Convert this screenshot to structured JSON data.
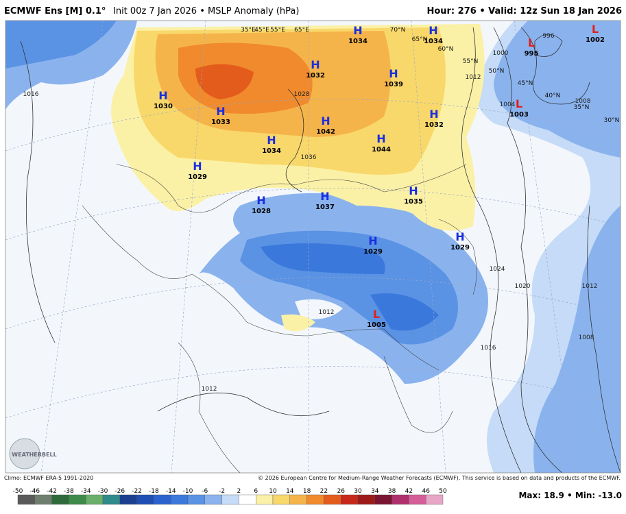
{
  "header": {
    "title": "ECMWF Ens [M] 0.1°",
    "subtitle": "Init 00z 7 Jan 2026 • MSLP Anomaly (hPa)",
    "valid": "Hour: 276 • Valid: 12z Sun 18 Jan 2026"
  },
  "map": {
    "centers": [
      {
        "symbol": "H",
        "pressure": "1030"
      },
      {
        "symbol": "H",
        "pressure": "1033"
      },
      {
        "symbol": "H",
        "pressure": "1029"
      },
      {
        "symbol": "H",
        "pressure": "1034"
      },
      {
        "symbol": "H",
        "pressure": "1032"
      },
      {
        "symbol": "H",
        "pressure": "1042"
      },
      {
        "symbol": "H",
        "pressure": "1034"
      },
      {
        "symbol": "H",
        "pressure": "1039"
      },
      {
        "symbol": "H",
        "pressure": "1034"
      },
      {
        "symbol": "H",
        "pressure": "1032"
      },
      {
        "symbol": "H",
        "pressure": "1044"
      },
      {
        "symbol": "H",
        "pressure": "1035"
      },
      {
        "symbol": "H",
        "pressure": "1028"
      },
      {
        "symbol": "H",
        "pressure": "1037"
      },
      {
        "symbol": "H",
        "pressure": "1029"
      },
      {
        "symbol": "H",
        "pressure": "1029"
      },
      {
        "symbol": "L",
        "pressure": "1005"
      },
      {
        "symbol": "L",
        "pressure": "995"
      },
      {
        "symbol": "L",
        "pressure": "1002"
      },
      {
        "symbol": "L",
        "pressure": "1003"
      }
    ],
    "isobar_labels": [
      "1016",
      "1000",
      "996",
      "1004",
      "1008",
      "1012",
      "1024",
      "1020",
      "1016",
      "1012",
      "1008",
      "1028",
      "1036",
      "1012",
      "1012"
    ],
    "grid_labels": [
      "35°E",
      "45°E",
      "55°E",
      "65°E",
      "70°N",
      "65°N",
      "60°N",
      "55°N",
      "50°N",
      "45°N",
      "40°N",
      "35°N",
      "30°N"
    ]
  },
  "footer": {
    "climo": "Climo: ECMWF ERA-5 1991-2020",
    "copyright": "© 2026 European Centre for Medium-Range Weather Forecasts (ECMWF). This service is based on data and products of the ECMWF.",
    "logo": "WEATHERBELL"
  },
  "colorbar": {
    "ticks": [
      -50,
      -46,
      -42,
      -38,
      -34,
      -30,
      -26,
      -22,
      -18,
      -14,
      -10,
      -6,
      -2,
      2,
      6,
      10,
      14,
      18,
      22,
      26,
      30,
      34,
      38,
      42,
      46,
      50
    ],
    "colors": [
      "#5a5a5a",
      "#6f7f6f",
      "#2f6b3a",
      "#3e8a4a",
      "#6aae6a",
      "#2f8a8a",
      "#1d3f8f",
      "#1f4fb5",
      "#2a63cf",
      "#3b78dc",
      "#5a92e4",
      "#8ab3ee",
      "#c5dbf7",
      "#ffffff",
      "#fbf1a6",
      "#f8d86a",
      "#f5b44a",
      "#f08a2c",
      "#e45c1c",
      "#c8281a",
      "#9c1a18",
      "#7a1430",
      "#b0306e",
      "#d45e98",
      "#e8a6c6"
    ]
  },
  "stats": "Max: 18.9 • Min: -13.0"
}
